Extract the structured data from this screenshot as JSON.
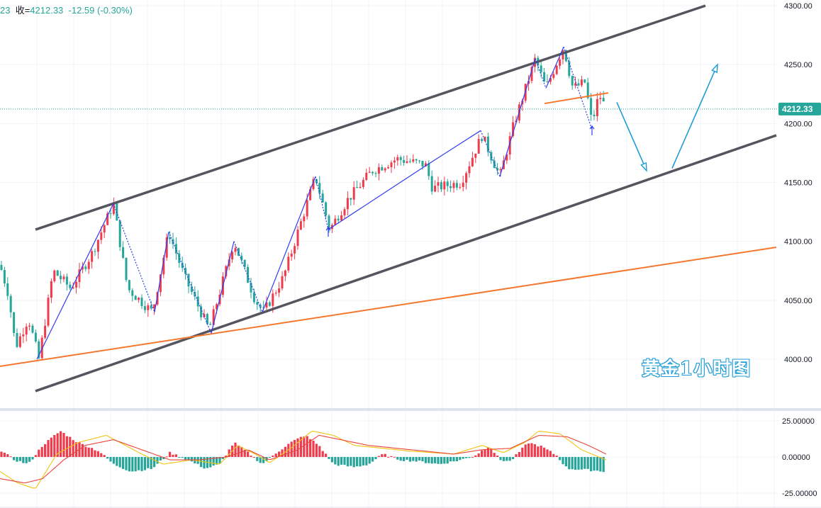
{
  "header": {
    "symbol_fragment": "23",
    "close_label": "收=",
    "close_value": "4212.33",
    "change": "-12.59",
    "change_pct": "(-0.30%)"
  },
  "watermark": "黄金1小时图",
  "colors": {
    "up": "#ef3b4b",
    "down": "#26a69a",
    "channel": "#55555f",
    "support": "#f4772e",
    "zigzag": "#2f3cf0",
    "forecast": "#1e9bd7",
    "macd_fast": "#f1c40f",
    "macd_slow": "#e8453c",
    "price_tag": "#26a69a"
  },
  "chart_data": [
    {
      "type": "candlestick",
      "title": "",
      "last_price": "4212.33",
      "y_ticks": [
        "4300.00",
        "4250.00",
        "4200.00",
        "4150.00",
        "4100.00",
        "4050.00",
        "4000.00"
      ],
      "ylim": [
        3965,
        4305
      ],
      "anchors": [
        [
          0,
          4080
        ],
        [
          12,
          4055
        ],
        [
          22,
          4010
        ],
        [
          40,
          4035
        ],
        [
          55,
          4000
        ],
        [
          75,
          4075
        ],
        [
          100,
          4060
        ],
        [
          130,
          4090
        ],
        [
          160,
          4132
        ],
        [
          180,
          4060
        ],
        [
          215,
          4040
        ],
        [
          238,
          4108
        ],
        [
          260,
          4070
        ],
        [
          295,
          4025
        ],
        [
          330,
          4100
        ],
        [
          360,
          4050
        ],
        [
          372,
          4040
        ],
        [
          400,
          4070
        ],
        [
          445,
          4155
        ],
        [
          465,
          4110
        ],
        [
          490,
          4135
        ],
        [
          525,
          4160
        ],
        [
          560,
          4170
        ],
        [
          600,
          4165
        ],
        [
          610,
          4145
        ],
        [
          650,
          4150
        ],
        [
          680,
          4190
        ],
        [
          705,
          4155
        ],
        [
          725,
          4200
        ],
        [
          755,
          4255
        ],
        [
          770,
          4230
        ],
        [
          795,
          4265
        ],
        [
          808,
          4230
        ],
        [
          825,
          4235
        ],
        [
          835,
          4200
        ],
        [
          845,
          4225
        ],
        [
          855,
          4212
        ]
      ],
      "channel_lines": [
        {
          "from": [
            50,
            4110
          ],
          "to": [
            995,
            4300
          ]
        },
        {
          "from": [
            50,
            3973
          ],
          "to": [
            1095,
            4190
          ]
        }
      ],
      "support_lines": [
        {
          "from": [
            0,
            3994
          ],
          "to": [
            1095,
            4095
          ]
        },
        {
          "from": [
            768,
            4217
          ],
          "to": [
            858,
            4226
          ]
        }
      ],
      "zigzag": [
        [
          52,
          4000
        ],
        [
          160,
          4132
        ],
        [
          218,
          4040
        ],
        [
          238,
          4108
        ],
        [
          298,
          4022
        ],
        [
          330,
          4100
        ],
        [
          370,
          4040
        ],
        [
          445,
          4155
        ],
        [
          463,
          4110
        ],
        [
          600,
          4164
        ],
        [
          678,
          4194
        ],
        [
          705,
          4155
        ],
        [
          755,
          4255
        ],
        [
          770,
          4230
        ],
        [
          795,
          4265
        ],
        [
          835,
          4195
        ]
      ],
      "forecast_path": [
        [
          870,
          4218
        ],
        [
          912,
          4160
        ],
        [
          948,
          4162
        ],
        [
          1012,
          4250
        ]
      ]
    },
    {
      "type": "macd",
      "title": "",
      "y_ticks": [
        "25.00000",
        "0.00000",
        "-25.00000"
      ],
      "ylim": [
        -30,
        30
      ],
      "hist_anchors": [
        [
          0,
          5
        ],
        [
          20,
          -2
        ],
        [
          40,
          -5
        ],
        [
          60,
          8
        ],
        [
          85,
          18
        ],
        [
          110,
          10
        ],
        [
          140,
          4
        ],
        [
          160,
          -5
        ],
        [
          185,
          -10
        ],
        [
          215,
          -8
        ],
        [
          240,
          3
        ],
        [
          265,
          -2
        ],
        [
          290,
          -8
        ],
        [
          310,
          -5
        ],
        [
          330,
          10
        ],
        [
          350,
          3
        ],
        [
          370,
          -5
        ],
        [
          390,
          3
        ],
        [
          410,
          10
        ],
        [
          430,
          15
        ],
        [
          450,
          8
        ],
        [
          470,
          -5
        ],
        [
          500,
          -7
        ],
        [
          520,
          -5
        ],
        [
          540,
          2
        ],
        [
          565,
          -2
        ],
        [
          590,
          -3
        ],
        [
          620,
          -5
        ],
        [
          650,
          -2
        ],
        [
          670,
          1
        ],
        [
          690,
          8
        ],
        [
          705,
          -2
        ],
        [
          720,
          -3
        ],
        [
          745,
          10
        ],
        [
          765,
          7
        ],
        [
          785,
          1
        ],
        [
          800,
          -8
        ],
        [
          830,
          -9
        ],
        [
          855,
          -10
        ]
      ],
      "fast_anchors": [
        [
          0,
          -10
        ],
        [
          25,
          -18
        ],
        [
          50,
          -22
        ],
        [
          80,
          2
        ],
        [
          110,
          10
        ],
        [
          150,
          15
        ],
        [
          200,
          2
        ],
        [
          230,
          -5
        ],
        [
          270,
          -2
        ],
        [
          310,
          -5
        ],
        [
          335,
          8
        ],
        [
          360,
          2
        ],
        [
          380,
          -4
        ],
        [
          410,
          6
        ],
        [
          440,
          18
        ],
        [
          470,
          15
        ],
        [
          500,
          8
        ],
        [
          540,
          6
        ],
        [
          580,
          4
        ],
        [
          610,
          3
        ],
        [
          640,
          2
        ],
        [
          680,
          8
        ],
        [
          710,
          3
        ],
        [
          740,
          10
        ],
        [
          760,
          18
        ],
        [
          790,
          16
        ],
        [
          820,
          5
        ],
        [
          855,
          -2
        ]
      ],
      "slow_anchors": [
        [
          0,
          -15
        ],
        [
          35,
          -18
        ],
        [
          60,
          -15
        ],
        [
          90,
          -2
        ],
        [
          120,
          8
        ],
        [
          160,
          12
        ],
        [
          200,
          5
        ],
        [
          240,
          -2
        ],
        [
          280,
          -2
        ],
        [
          320,
          0
        ],
        [
          350,
          5
        ],
        [
          380,
          -2
        ],
        [
          420,
          5
        ],
        [
          450,
          15
        ],
        [
          480,
          12
        ],
        [
          520,
          8
        ],
        [
          560,
          6
        ],
        [
          600,
          4
        ],
        [
          640,
          2
        ],
        [
          680,
          5
        ],
        [
          720,
          6
        ],
        [
          760,
          15
        ],
        [
          800,
          14
        ],
        [
          830,
          8
        ],
        [
          855,
          2
        ]
      ]
    }
  ]
}
